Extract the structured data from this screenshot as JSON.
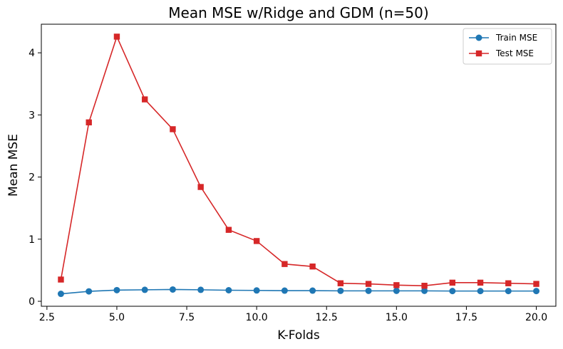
{
  "chart_data": {
    "type": "line",
    "title": "Mean MSE w/Ridge and GDM (n=50)",
    "xlabel": "K-Folds",
    "ylabel": "Mean MSE",
    "xlim": [
      2.3,
      20.7
    ],
    "ylim": [
      -0.08,
      4.46
    ],
    "xticks": [
      2.5,
      5.0,
      7.5,
      10.0,
      12.5,
      15.0,
      17.5,
      20.0
    ],
    "xtick_labels": [
      "2.5",
      "5.0",
      "7.5",
      "10.0",
      "12.5",
      "15.0",
      "17.5",
      "20.0"
    ],
    "yticks": [
      0,
      1,
      2,
      3,
      4
    ],
    "ytick_labels": [
      "0",
      "1",
      "2",
      "3",
      "4"
    ],
    "grid": false,
    "legend_position": "top-right",
    "x": [
      3,
      4,
      5,
      6,
      7,
      8,
      9,
      10,
      11,
      12,
      13,
      14,
      15,
      16,
      17,
      18,
      19,
      20
    ],
    "series": [
      {
        "name": "Train MSE",
        "marker": "circle",
        "color": "#1f77b4",
        "values": [
          0.12,
          0.16,
          0.18,
          0.185,
          0.19,
          0.185,
          0.178,
          0.175,
          0.172,
          0.172,
          0.168,
          0.168,
          0.168,
          0.168,
          0.165,
          0.165,
          0.165,
          0.165
        ]
      },
      {
        "name": "Test MSE",
        "marker": "square",
        "color": "#d62728",
        "values": [
          0.35,
          2.88,
          4.26,
          3.25,
          2.77,
          1.84,
          1.15,
          0.97,
          0.6,
          0.56,
          0.29,
          0.28,
          0.26,
          0.25,
          0.3,
          0.3,
          0.29,
          0.28
        ]
      }
    ]
  }
}
